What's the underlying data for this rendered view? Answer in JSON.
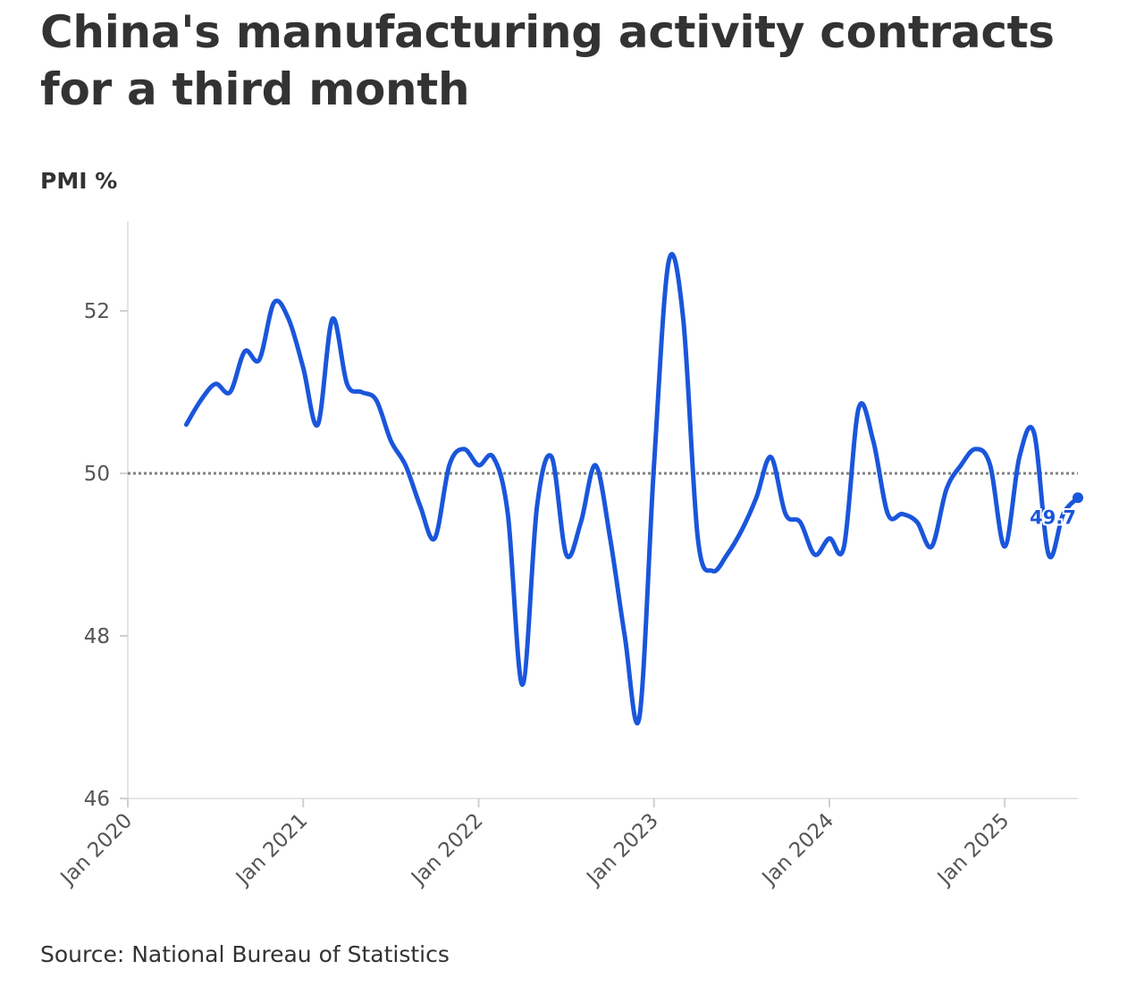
{
  "title": "China's manufacturing activity contracts for a third month",
  "source": "Source: National Bureau of Statistics",
  "colors": {
    "line": "#1a56db",
    "reference_line": "#808080",
    "axis": "#e5e5e5",
    "text": "#333333"
  },
  "chart_data": {
    "type": "line",
    "title": "China's manufacturing activity contracts for a third month",
    "ylabel": "PMI %",
    "xlabel": "",
    "ylim": [
      46,
      53
    ],
    "yticks": [
      46,
      48,
      50,
      52
    ],
    "xlim": [
      "2020-01",
      "2025-06"
    ],
    "xticks": [
      {
        "date": "2020-01",
        "label": "Jan 2020"
      },
      {
        "date": "2021-01",
        "label": "Jan 2021"
      },
      {
        "date": "2022-01",
        "label": "Jan 2022"
      },
      {
        "date": "2023-01",
        "label": "Jan 2023"
      },
      {
        "date": "2024-01",
        "label": "Jan 2024"
      },
      {
        "date": "2025-01",
        "label": "Jan 2025"
      }
    ],
    "reference_line": 50,
    "grid": false,
    "end_label": "49.7",
    "series": [
      {
        "x": [
          "2020-05",
          "2020-06",
          "2020-07",
          "2020-08",
          "2020-09",
          "2020-10",
          "2020-11",
          "2020-12",
          "2021-01",
          "2021-02",
          "2021-03",
          "2021-04",
          "2021-05",
          "2021-06",
          "2021-07",
          "2021-08",
          "2021-09",
          "2021-10",
          "2021-11",
          "2021-12",
          "2022-01",
          "2022-02",
          "2022-03",
          "2022-04",
          "2022-05",
          "2022-06",
          "2022-07",
          "2022-08",
          "2022-09",
          "2022-10",
          "2022-11",
          "2022-12",
          "2023-01",
          "2023-02",
          "2023-03",
          "2023-04",
          "2023-05",
          "2023-06",
          "2023-07",
          "2023-08",
          "2023-09",
          "2023-10",
          "2023-11",
          "2023-12",
          "2024-01",
          "2024-02",
          "2024-03",
          "2024-04",
          "2024-05",
          "2024-06",
          "2024-07",
          "2024-08",
          "2024-09",
          "2024-10",
          "2024-11",
          "2024-12",
          "2025-01",
          "2025-02",
          "2025-03",
          "2025-04",
          "2025-05",
          "2025-06"
        ],
        "values": [
          50.6,
          50.9,
          51.1,
          51.0,
          51.5,
          51.4,
          52.1,
          51.9,
          51.3,
          50.6,
          51.9,
          51.1,
          51.0,
          50.9,
          50.4,
          50.1,
          49.6,
          49.2,
          50.1,
          50.3,
          50.1,
          50.2,
          49.5,
          47.4,
          49.6,
          50.2,
          49.0,
          49.4,
          50.1,
          49.2,
          48.0,
          47.0,
          50.1,
          52.6,
          51.9,
          49.2,
          48.8,
          49.0,
          49.3,
          49.7,
          50.2,
          49.5,
          49.4,
          49.0,
          49.2,
          49.1,
          50.8,
          50.4,
          49.5,
          49.5,
          49.4,
          49.1,
          49.8,
          50.1,
          50.3,
          50.1,
          49.1,
          50.2,
          50.5,
          49.0,
          49.5,
          49.7
        ]
      }
    ]
  }
}
